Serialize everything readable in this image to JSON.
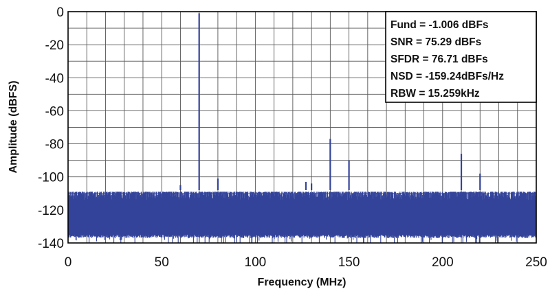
{
  "chart_data": {
    "type": "line",
    "title": "",
    "xlabel": "Frequency (MHz)",
    "ylabel": "Amplitude (dBFS)",
    "xlim": [
      0,
      250
    ],
    "ylim": [
      -140,
      0
    ],
    "x_ticks": [
      0,
      50,
      100,
      150,
      200,
      250
    ],
    "y_ticks": [
      0,
      -20,
      -40,
      -60,
      -80,
      -100,
      -120,
      -140
    ],
    "x_tick_labels": [
      "0",
      "50",
      "100",
      "150",
      "200",
      "250"
    ],
    "y_tick_labels": [
      "0",
      "-20",
      "-40",
      "-60",
      "-80",
      "-100",
      "-120",
      "-140"
    ],
    "grid": true,
    "grid_x_step": 10,
    "grid_y_step": 10,
    "series_color": "#33439a",
    "noise_floor": {
      "x_range": [
        0,
        250
      ],
      "top_dbfs": -109,
      "bottom_dbfs": -135,
      "deep_dip_dbfs": -140
    },
    "peaks": [
      {
        "x": 60,
        "y": -105
      },
      {
        "x": 70,
        "y": -1.006
      },
      {
        "x": 80,
        "y": -101
      },
      {
        "x": 127,
        "y": -103
      },
      {
        "x": 130,
        "y": -104
      },
      {
        "x": 140,
        "y": -77
      },
      {
        "x": 150,
        "y": -90
      },
      {
        "x": 210,
        "y": -86
      },
      {
        "x": 220,
        "y": -98
      }
    ],
    "annotation": {
      "position": "top-right",
      "lines": [
        "Fund = -1.006 dBFs",
        "SNR = 75.29 dBFs",
        "SFDR = 76.71 dBFs",
        "NSD = -159.24dBFs/Hz",
        "RBW = 15.259kHz"
      ]
    }
  }
}
